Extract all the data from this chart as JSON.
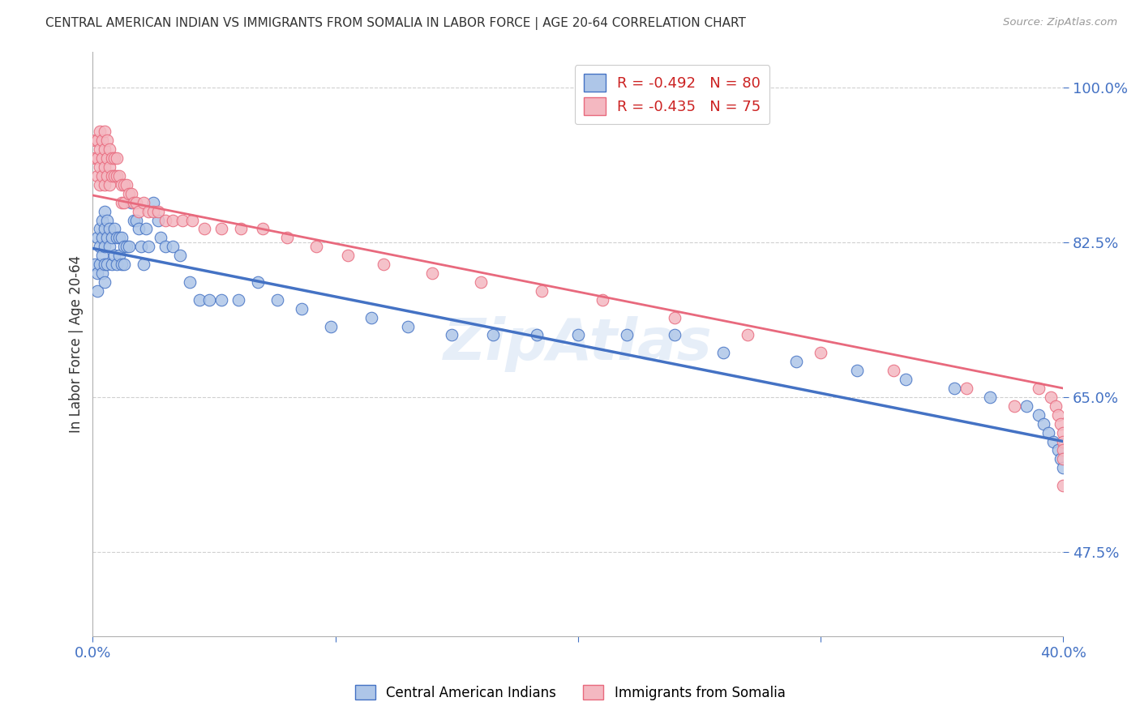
{
  "title": "CENTRAL AMERICAN INDIAN VS IMMIGRANTS FROM SOMALIA IN LABOR FORCE | AGE 20-64 CORRELATION CHART",
  "source": "Source: ZipAtlas.com",
  "ylabel": "In Labor Force | Age 20-64",
  "xlim": [
    0.0,
    0.4
  ],
  "ylim": [
    0.38,
    1.04
  ],
  "yticks": [
    0.475,
    0.65,
    0.825,
    1.0
  ],
  "ytick_labels": [
    "47.5%",
    "65.0%",
    "82.5%",
    "100.0%"
  ],
  "xticks": [
    0.0,
    0.1,
    0.2,
    0.3,
    0.4
  ],
  "xtick_labels": [
    "0.0%",
    "",
    "",
    "",
    "40.0%"
  ],
  "grid_color": "#d0d0d0",
  "background_color": "#ffffff",
  "tick_color": "#4472c4",
  "series1_color": "#aec6e8",
  "series1_edge": "#4472c4",
  "series2_color": "#f4b8c1",
  "series2_edge": "#e8697d",
  "line1_color": "#4472c4",
  "line2_color": "#e8697d",
  "scatter1_x": [
    0.001,
    0.002,
    0.002,
    0.002,
    0.003,
    0.003,
    0.003,
    0.004,
    0.004,
    0.004,
    0.004,
    0.005,
    0.005,
    0.005,
    0.005,
    0.005,
    0.006,
    0.006,
    0.006,
    0.007,
    0.007,
    0.008,
    0.008,
    0.009,
    0.009,
    0.01,
    0.01,
    0.011,
    0.011,
    0.012,
    0.012,
    0.013,
    0.013,
    0.014,
    0.015,
    0.016,
    0.017,
    0.018,
    0.019,
    0.02,
    0.021,
    0.022,
    0.023,
    0.025,
    0.027,
    0.028,
    0.03,
    0.033,
    0.036,
    0.04,
    0.044,
    0.048,
    0.053,
    0.06,
    0.068,
    0.076,
    0.086,
    0.098,
    0.115,
    0.13,
    0.148,
    0.165,
    0.183,
    0.2,
    0.22,
    0.24,
    0.26,
    0.29,
    0.315,
    0.335,
    0.355,
    0.37,
    0.385,
    0.39,
    0.392,
    0.394,
    0.396,
    0.398,
    0.399,
    0.4
  ],
  "scatter1_y": [
    0.8,
    0.83,
    0.79,
    0.77,
    0.84,
    0.82,
    0.8,
    0.85,
    0.83,
    0.81,
    0.79,
    0.86,
    0.84,
    0.82,
    0.8,
    0.78,
    0.85,
    0.83,
    0.8,
    0.84,
    0.82,
    0.83,
    0.8,
    0.84,
    0.81,
    0.83,
    0.8,
    0.83,
    0.81,
    0.83,
    0.8,
    0.82,
    0.8,
    0.82,
    0.82,
    0.87,
    0.85,
    0.85,
    0.84,
    0.82,
    0.8,
    0.84,
    0.82,
    0.87,
    0.85,
    0.83,
    0.82,
    0.82,
    0.81,
    0.78,
    0.76,
    0.76,
    0.76,
    0.76,
    0.78,
    0.76,
    0.75,
    0.73,
    0.74,
    0.73,
    0.72,
    0.72,
    0.72,
    0.72,
    0.72,
    0.72,
    0.7,
    0.69,
    0.68,
    0.67,
    0.66,
    0.65,
    0.64,
    0.63,
    0.62,
    0.61,
    0.6,
    0.59,
    0.58,
    0.57
  ],
  "scatter2_x": [
    0.001,
    0.001,
    0.002,
    0.002,
    0.002,
    0.003,
    0.003,
    0.003,
    0.003,
    0.004,
    0.004,
    0.004,
    0.005,
    0.005,
    0.005,
    0.005,
    0.006,
    0.006,
    0.006,
    0.007,
    0.007,
    0.007,
    0.008,
    0.008,
    0.009,
    0.009,
    0.01,
    0.01,
    0.011,
    0.012,
    0.012,
    0.013,
    0.013,
    0.014,
    0.015,
    0.016,
    0.017,
    0.018,
    0.019,
    0.021,
    0.023,
    0.025,
    0.027,
    0.03,
    0.033,
    0.037,
    0.041,
    0.046,
    0.053,
    0.061,
    0.07,
    0.08,
    0.092,
    0.105,
    0.12,
    0.14,
    0.16,
    0.185,
    0.21,
    0.24,
    0.27,
    0.3,
    0.33,
    0.36,
    0.38,
    0.39,
    0.395,
    0.397,
    0.398,
    0.399,
    0.4,
    0.4,
    0.4,
    0.4,
    0.4
  ],
  "scatter2_y": [
    0.94,
    0.92,
    0.94,
    0.92,
    0.9,
    0.95,
    0.93,
    0.91,
    0.89,
    0.94,
    0.92,
    0.9,
    0.95,
    0.93,
    0.91,
    0.89,
    0.94,
    0.92,
    0.9,
    0.93,
    0.91,
    0.89,
    0.92,
    0.9,
    0.92,
    0.9,
    0.92,
    0.9,
    0.9,
    0.89,
    0.87,
    0.89,
    0.87,
    0.89,
    0.88,
    0.88,
    0.87,
    0.87,
    0.86,
    0.87,
    0.86,
    0.86,
    0.86,
    0.85,
    0.85,
    0.85,
    0.85,
    0.84,
    0.84,
    0.84,
    0.84,
    0.83,
    0.82,
    0.81,
    0.8,
    0.79,
    0.78,
    0.77,
    0.76,
    0.74,
    0.72,
    0.7,
    0.68,
    0.66,
    0.64,
    0.66,
    0.65,
    0.64,
    0.63,
    0.62,
    0.61,
    0.6,
    0.59,
    0.58,
    0.55
  ],
  "trendline1_x": [
    0.0,
    0.4
  ],
  "trendline1_y": [
    0.818,
    0.6
  ],
  "trendline2_x": [
    0.0,
    0.4
  ],
  "trendline2_y": [
    0.878,
    0.66
  ],
  "legend1_label": "R = -0.492   N = 80",
  "legend2_label": "R = -0.435   N = 75",
  "bottom_legend1": "Central American Indians",
  "bottom_legend2": "Immigrants from Somalia"
}
